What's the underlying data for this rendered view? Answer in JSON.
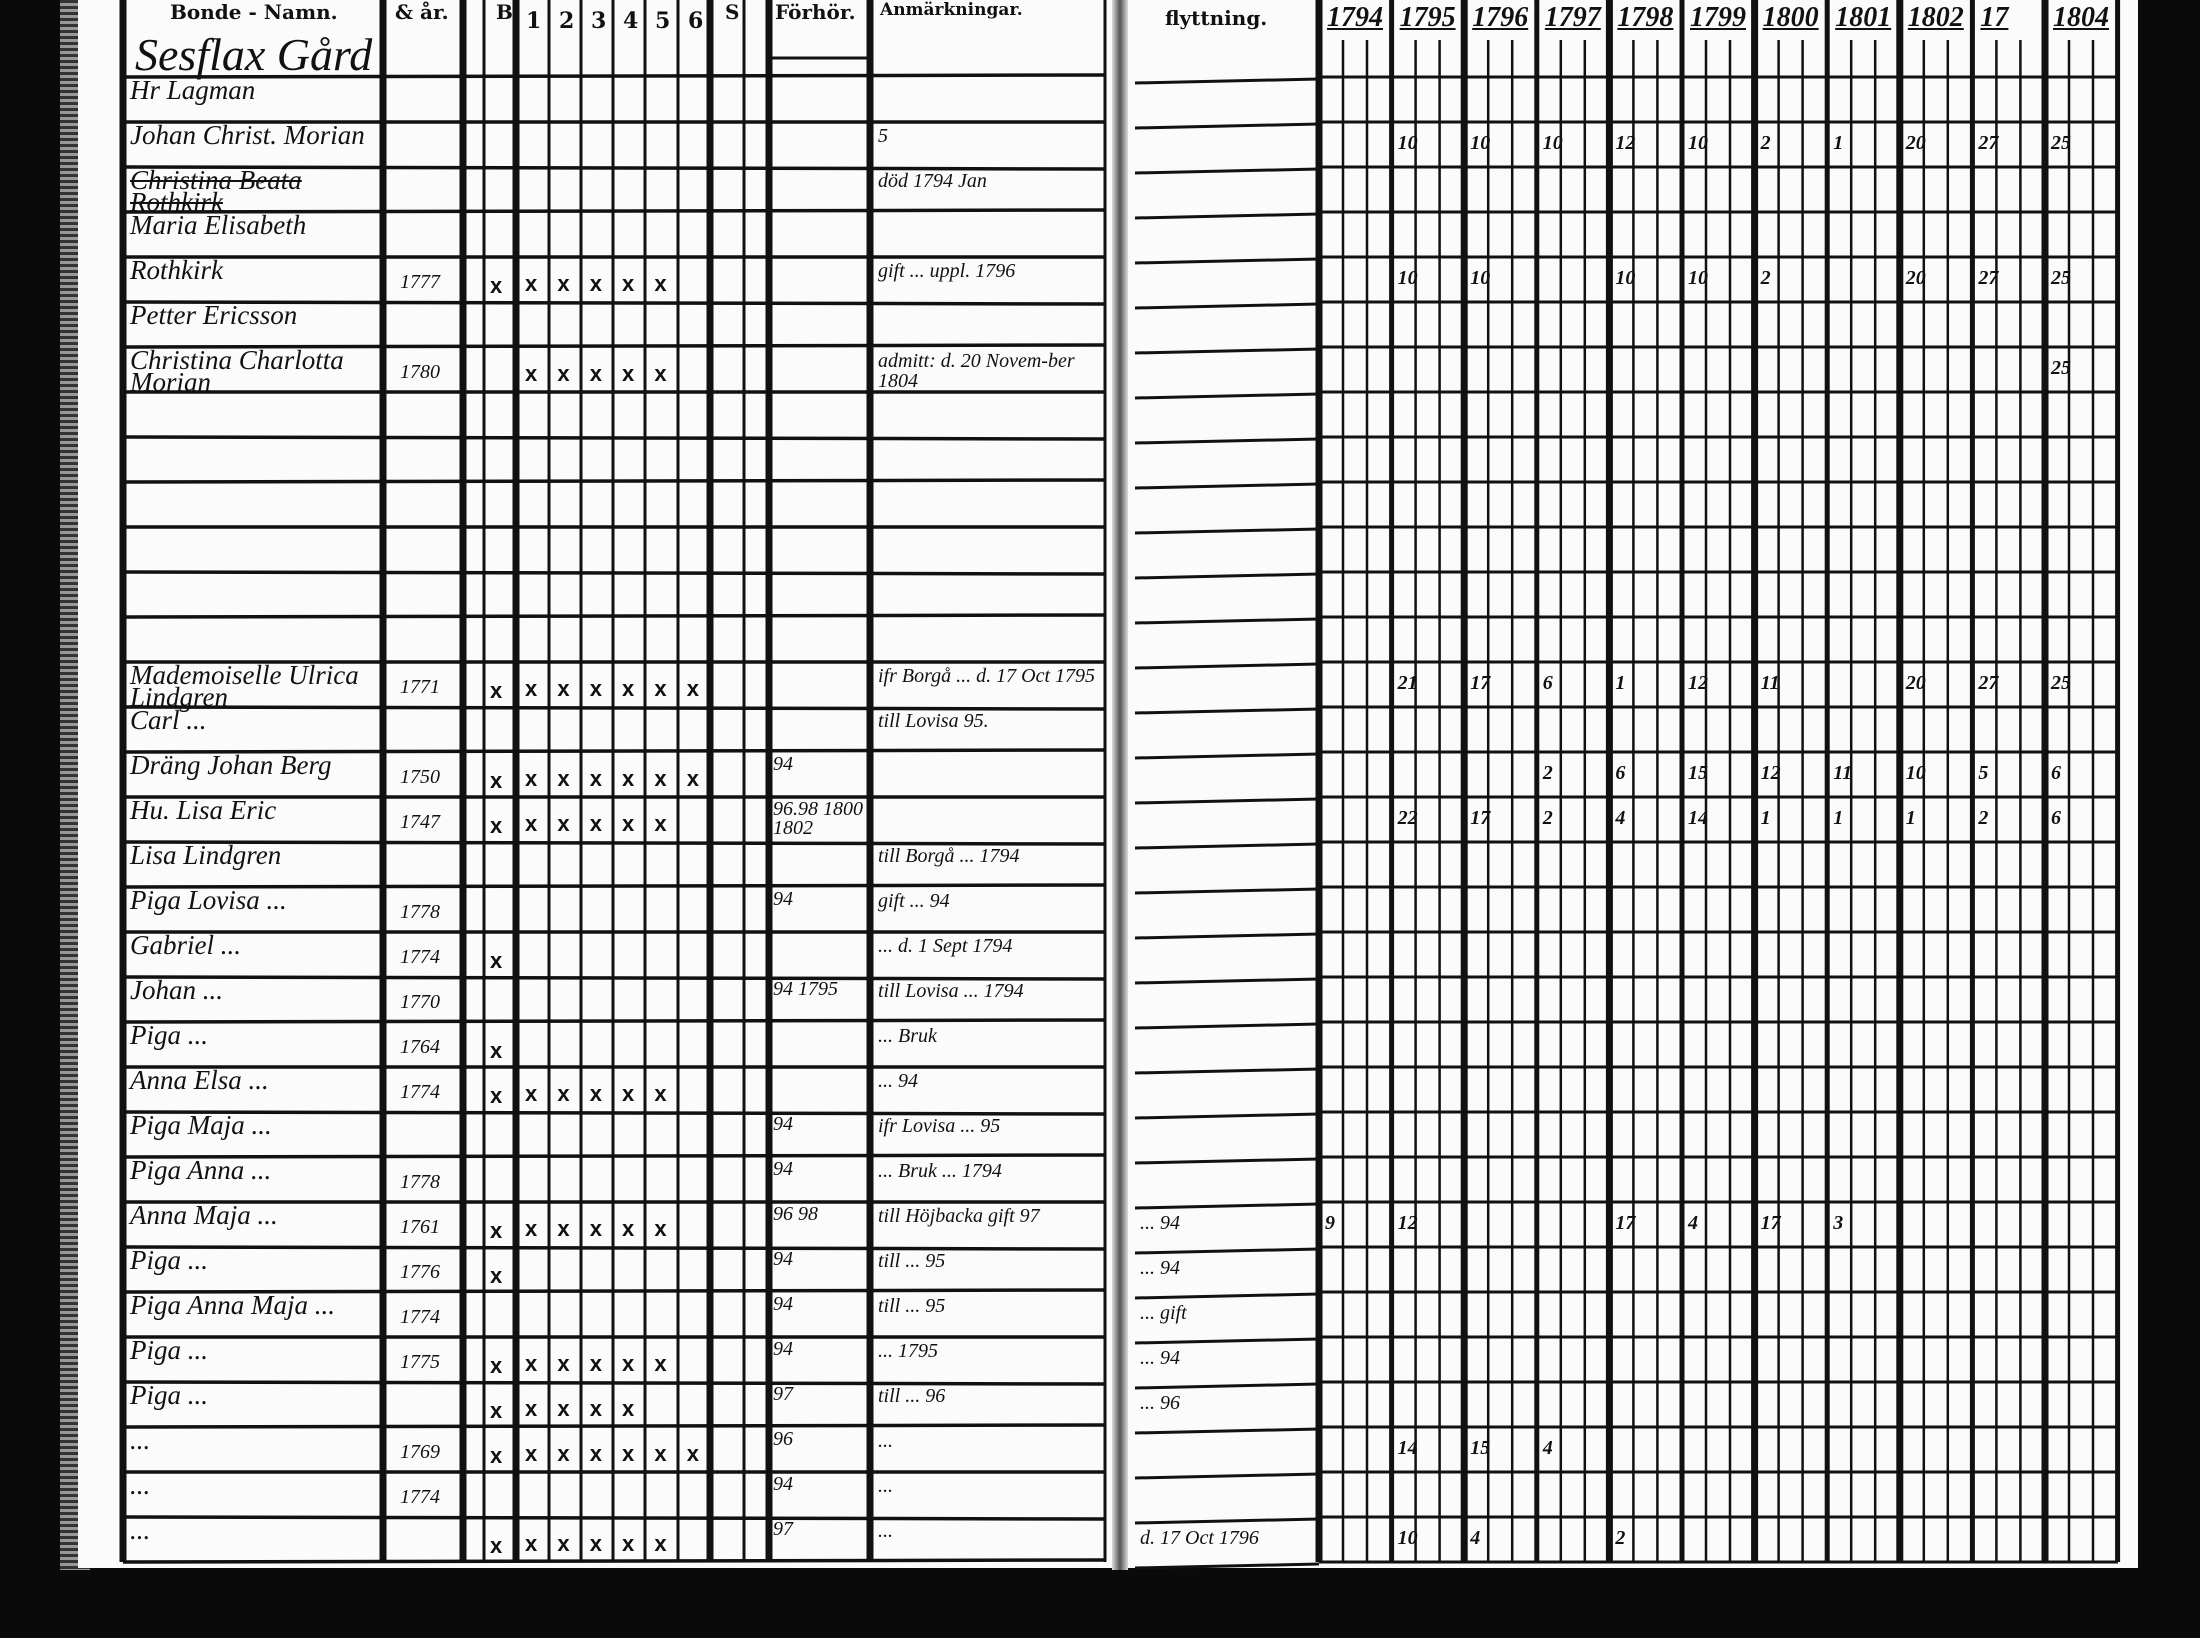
{
  "document": {
    "farm_title": "Sesflax Gård",
    "headers": {
      "name": "Bonde - Namn.",
      "birth": "& år.",
      "b": "B",
      "subcols": [
        "1",
        "2",
        "3",
        "4",
        "5",
        "6"
      ],
      "s": "S",
      "forhor": "Förhör.",
      "remarks": "Anmärkningar.",
      "moving": "flyttning."
    },
    "years": [
      "1794",
      "1795",
      "1796",
      "1797",
      "1798",
      "1799",
      "1800",
      "1801",
      "1802",
      "17",
      "1804"
    ],
    "rows": [
      {
        "name": "Hr Lagman",
        "birth": "",
        "b": "",
        "marks": "",
        "forhor": "",
        "remarks": ""
      },
      {
        "name": "Johan Christ. Morian",
        "birth": "",
        "b": "",
        "marks": "",
        "forhor": "",
        "remarks": "5"
      },
      {
        "name": "Christina Beata Rothkirk",
        "birth": "",
        "b": "",
        "marks": "",
        "forhor": "",
        "remarks": "död 1794 Jan",
        "struck": true
      },
      {
        "name": "Maria Elisabeth",
        "birth": "",
        "b": "",
        "marks": "",
        "forhor": "",
        "remarks": ""
      },
      {
        "name": "Rothkirk",
        "birth": "1777",
        "b": "x",
        "marks": "x x x x x",
        "forhor": "",
        "remarks": "gift ... uppl. 1796"
      },
      {
        "name": "Petter Ericsson",
        "birth": "",
        "b": "",
        "marks": "",
        "forhor": "",
        "remarks": ""
      },
      {
        "name": "Christina Charlotta Morian",
        "birth": "1780",
        "b": "",
        "marks": "x x x x x",
        "forhor": "",
        "remarks": "admitt: d. 20 Novem-ber 1804"
      },
      {
        "name": "",
        "birth": "",
        "b": "",
        "marks": "",
        "forhor": "",
        "remarks": ""
      },
      {
        "name": "",
        "birth": "",
        "b": "",
        "marks": "",
        "forhor": "",
        "remarks": ""
      },
      {
        "name": "",
        "birth": "",
        "b": "",
        "marks": "",
        "forhor": "",
        "remarks": ""
      },
      {
        "name": "",
        "birth": "",
        "b": "",
        "marks": "",
        "forhor": "",
        "remarks": ""
      },
      {
        "name": "",
        "birth": "",
        "b": "",
        "marks": "",
        "forhor": "",
        "remarks": ""
      },
      {
        "name": "",
        "birth": "",
        "b": "",
        "marks": "",
        "forhor": "",
        "remarks": ""
      },
      {
        "name": "Mademoiselle Ulrica Lindgren",
        "birth": "1771",
        "b": "x",
        "marks": "x x x x x x",
        "forhor": "",
        "remarks": "ifr Borgå ... d. 17 Oct 1795"
      },
      {
        "name": "Carl ...",
        "birth": "",
        "b": "",
        "marks": "",
        "forhor": "",
        "remarks": "till Lovisa 95."
      },
      {
        "name": "Dräng Johan Berg",
        "birth": "1750",
        "b": "x",
        "marks": "x x x x x x",
        "forhor": "94",
        "remarks": ""
      },
      {
        "name": "Hu. Lisa Eric",
        "birth": "1747",
        "b": "x",
        "marks": "x x x x x",
        "forhor": "96.98 1800 1802",
        "remarks": ""
      },
      {
        "name": "Lisa Lindgren",
        "birth": "",
        "b": "",
        "marks": "",
        "forhor": "",
        "remarks": "till Borgå ... 1794"
      },
      {
        "name": "Piga Lovisa ...",
        "birth": "1778",
        "b": "",
        "marks": "",
        "forhor": "94",
        "remarks": "gift ... 94"
      },
      {
        "name": "Gabriel ...",
        "birth": "1774",
        "b": "x",
        "marks": "",
        "forhor": "",
        "remarks": "... d. 1 Sept 1794"
      },
      {
        "name": "Johan ...",
        "birth": "1770",
        "b": "",
        "marks": "",
        "forhor": "94 1795",
        "remarks": "till Lovisa ... 1794"
      },
      {
        "name": "Piga ...",
        "birth": "1764",
        "b": "x",
        "marks": "",
        "forhor": "",
        "remarks": "... Bruk"
      },
      {
        "name": "Anna Elsa ...",
        "birth": "1774",
        "b": "x",
        "marks": "x x x x x",
        "forhor": "",
        "remarks": "... 94"
      },
      {
        "name": "Piga Maja ...",
        "birth": "",
        "b": "",
        "marks": "",
        "forhor": "94",
        "remarks": "ifr Lovisa ... 95"
      },
      {
        "name": "Piga Anna ...",
        "birth": "1778",
        "b": "",
        "marks": "",
        "forhor": "94",
        "remarks": "... Bruk ... 1794"
      },
      {
        "name": "Anna Maja ...",
        "birth": "1761",
        "b": "x",
        "marks": "x x x x x",
        "forhor": "96 98",
        "remarks": "till Höjbacka gift 97"
      },
      {
        "name": "Piga ...",
        "birth": "1776",
        "b": "x",
        "marks": "",
        "forhor": "94",
        "remarks": "till ... 95"
      },
      {
        "name": "Piga Anna Maja ...",
        "birth": "1774",
        "b": "",
        "marks": "",
        "forhor": "94",
        "remarks": "till ... 95"
      },
      {
        "name": "Piga ...",
        "birth": "1775",
        "b": "x",
        "marks": "x x x x x",
        "forhor": "94",
        "remarks": "... 1795"
      },
      {
        "name": "Piga ...",
        "birth": "",
        "b": "x",
        "marks": "x x x x",
        "forhor": "97",
        "remarks": "till ... 96"
      },
      {
        "name": "...",
        "birth": "1769",
        "b": "x",
        "marks": "x x x x x x",
        "forhor": "96",
        "remarks": "..."
      },
      {
        "name": "...",
        "birth": "1774",
        "b": "",
        "marks": "",
        "forhor": "94",
        "remarks": "..."
      },
      {
        "name": "...",
        "birth": "",
        "b": "x",
        "marks": "x x x x x",
        "forhor": "97",
        "remarks": "..."
      }
    ],
    "moving_notes": [
      {
        "row": 25,
        "text": "... 94"
      },
      {
        "row": 26,
        "text": "... 94"
      },
      {
        "row": 27,
        "text": "... gift"
      },
      {
        "row": 28,
        "text": "... 94"
      },
      {
        "row": 29,
        "text": "... 96"
      },
      {
        "row": 32,
        "text": "d. 17 Oct 1796"
      }
    ],
    "year_marks": [
      {
        "row": 1,
        "values": [
          "",
          "10",
          "10",
          "10",
          "12",
          "10",
          "2",
          "1",
          "20",
          "27",
          "25"
        ]
      },
      {
        "row": 2,
        "values": [
          "",
          "",
          "",
          "",
          "",
          "",
          "",
          "",
          "",
          "",
          ""
        ]
      },
      {
        "row": 4,
        "values": [
          "",
          "10",
          "10",
          "",
          "10",
          "10",
          "2",
          "",
          "20",
          "27",
          "25"
        ]
      },
      {
        "row": 6,
        "values": [
          "",
          "",
          "",
          "",
          "",
          "",
          "",
          "",
          "",
          "",
          "25"
        ]
      },
      {
        "row": 13,
        "values": [
          "",
          "21",
          "17",
          "6",
          "1",
          "12",
          "11",
          "",
          "20",
          "27",
          "25"
        ]
      },
      {
        "row": 15,
        "values": [
          "",
          "",
          "",
          "2",
          "6",
          "15",
          "12",
          "11",
          "10",
          "5",
          "6"
        ]
      },
      {
        "row": 16,
        "values": [
          "",
          "22",
          "17",
          "2",
          "4",
          "14",
          "1",
          "1",
          "1",
          "2",
          "6"
        ]
      },
      {
        "row": 25,
        "values": [
          "9",
          "12",
          "",
          "",
          "17",
          "4",
          "17",
          "3",
          "",
          "",
          ""
        ]
      },
      {
        "row": 30,
        "values": [
          "",
          "14",
          "15",
          "4",
          "",
          "",
          "",
          "",
          "",
          "",
          ""
        ]
      },
      {
        "row": 32,
        "values": [
          "",
          "10",
          "4",
          "",
          "2",
          "",
          "",
          "",
          "",
          "",
          ""
        ]
      }
    ]
  }
}
